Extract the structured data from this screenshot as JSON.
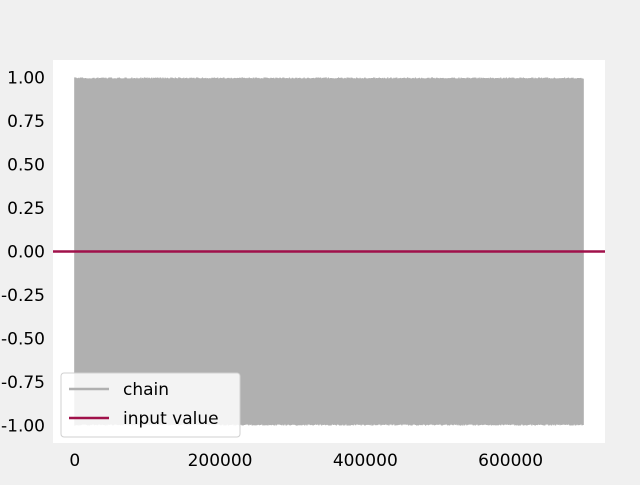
{
  "chart_data": {
    "type": "line",
    "title": "",
    "xlabel": "",
    "ylabel": "",
    "xlim": [
      -30000,
      730000
    ],
    "ylim": [
      -1.1,
      1.1
    ],
    "x_ticks": [
      0,
      200000,
      400000,
      600000
    ],
    "x_tick_labels": [
      "0",
      "200000",
      "400000",
      "600000"
    ],
    "y_ticks": [
      1.0,
      0.75,
      0.5,
      0.25,
      0.0,
      -0.25,
      -0.5,
      -0.75,
      -1.0
    ],
    "y_tick_labels": [
      "1.00",
      "0.75",
      "0.50",
      "0.25",
      "0.00",
      "-0.25",
      "-0.50",
      "-0.75",
      "-1.00"
    ],
    "grid": false,
    "legend_position": "lower-left",
    "series": [
      {
        "name": "chain",
        "color": "#b0b0b0",
        "x_range": [
          0,
          700000
        ],
        "y_range": [
          -1.0,
          1.0
        ],
        "description_kind": "dense oscillating trace"
      },
      {
        "name": "input value",
        "color": "#a0114a",
        "x": [
          -30000,
          730000
        ],
        "y": [
          0.0,
          0.0
        ]
      }
    ]
  }
}
